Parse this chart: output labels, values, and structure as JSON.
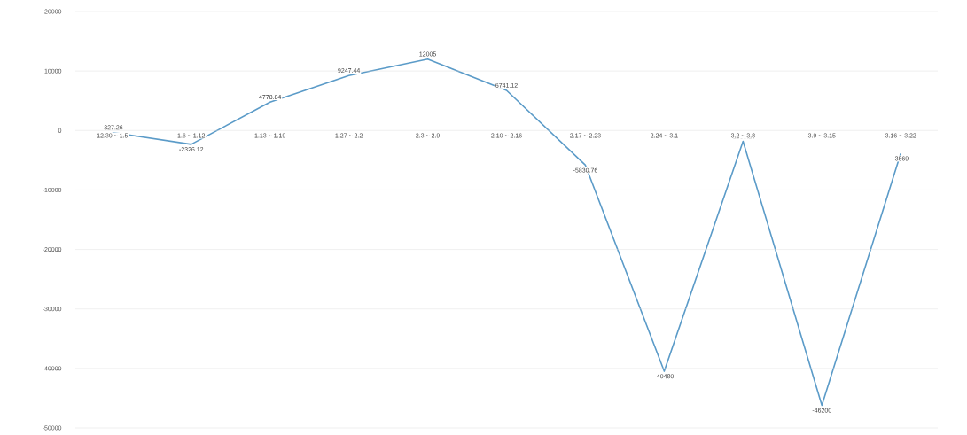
{
  "chart_data": {
    "type": "line",
    "categories": [
      "12.30 ~ 1.5",
      "1.6 ~ 1.12",
      "1.13 ~ 1.19",
      "1.27 ~ 2.2",
      "2.3 ~ 2.9",
      "2.10 ~ 2.16",
      "2.17 ~ 2.23",
      "2.24 ~ 3.1",
      "3.2 ~ 3.8",
      "3.9 ~ 3.15",
      "3.16 ~ 3.22"
    ],
    "values": [
      -327.26,
      -2326.12,
      4778.84,
      9247.44,
      12005,
      6741.12,
      -5830.76,
      -40480,
      -1830.29,
      -46200,
      -3869
    ],
    "color": "#5b9bc8",
    "ylim": [
      -50000,
      20000
    ],
    "yticks": [
      -50000,
      -40000,
      -30000,
      -20000,
      -10000,
      0,
      10000,
      20000
    ],
    "grid": "y",
    "data_labels": true,
    "marker": "none",
    "line_style": "solid"
  }
}
